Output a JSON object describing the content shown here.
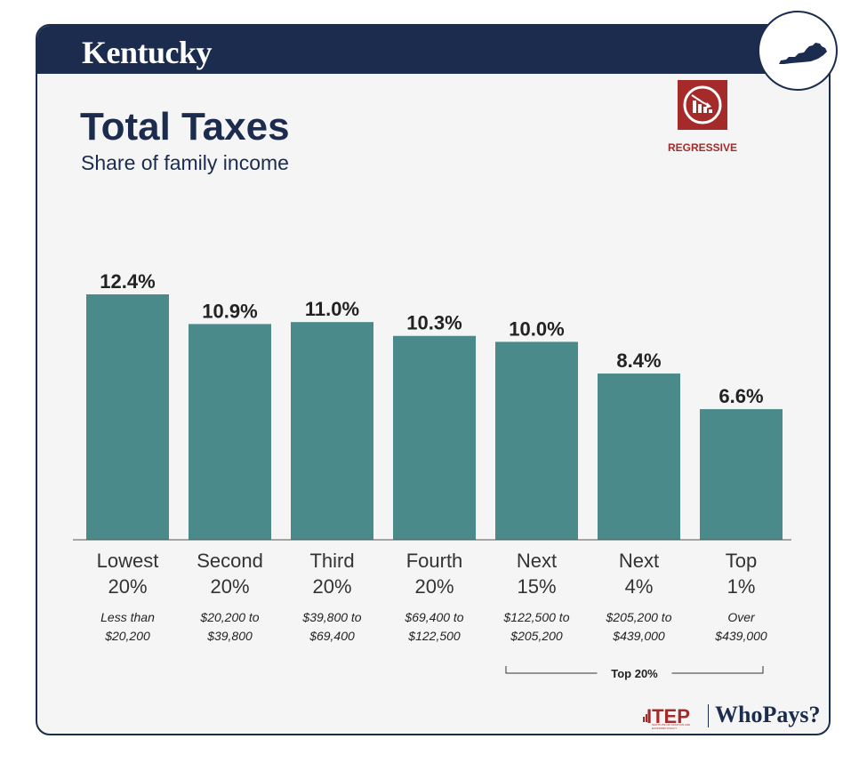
{
  "header": {
    "state": "Kentucky"
  },
  "title": "Total Taxes",
  "subtitle": "Share of family income",
  "badge": {
    "label": "REGRESSIVE",
    "icon": "regressive-chart-icon",
    "color": "#a52a2a"
  },
  "logo": {
    "itep": "ITEP",
    "itep_sub": "INSTITUTE ON TAXATION AND ECONOMIC POLICY",
    "whopays": "WhoPays?"
  },
  "colors": {
    "bar": "#4a8a8a",
    "navy": "#1b2c4e",
    "accent": "#a52a2a"
  },
  "chart_data": {
    "type": "bar",
    "title": "Total Taxes",
    "subtitle": "Share of family income",
    "categories": [
      "Lowest 20%",
      "Second 20%",
      "Third 20%",
      "Fourth 20%",
      "Next 15%",
      "Next 4%",
      "Top 1%"
    ],
    "category_lines": [
      [
        "Lowest",
        "20%"
      ],
      [
        "Second",
        "20%"
      ],
      [
        "Third",
        "20%"
      ],
      [
        "Fourth",
        "20%"
      ],
      [
        "Next",
        "15%"
      ],
      [
        "Next",
        "4%"
      ],
      [
        "Top",
        "1%"
      ]
    ],
    "income_ranges": [
      [
        "Less than",
        "$20,200"
      ],
      [
        "$20,200 to",
        "$39,800"
      ],
      [
        "$39,800 to",
        "$69,400"
      ],
      [
        "$69,400 to",
        "$122,500"
      ],
      [
        "$122,500 to",
        "$205,200"
      ],
      [
        "$205,200 to",
        "$439,000"
      ],
      [
        "Over",
        "$439,000"
      ]
    ],
    "values": [
      12.4,
      10.9,
      11.0,
      10.3,
      10.0,
      8.4,
      6.6
    ],
    "value_labels": [
      "12.4%",
      "10.9%",
      "11.0%",
      "10.3%",
      "10.0%",
      "8.4%",
      "6.6%"
    ],
    "unit": "%",
    "ylim": [
      0,
      12.4
    ],
    "grid": false,
    "bracket": {
      "label": "Top 20%",
      "from_index": 4,
      "to_index": 6
    }
  }
}
